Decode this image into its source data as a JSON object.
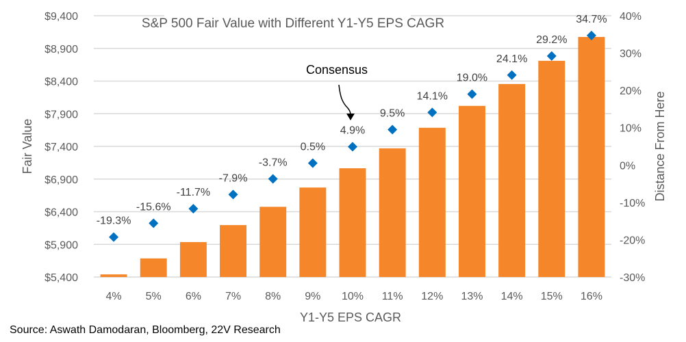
{
  "chart_data": {
    "type": "bar",
    "title": "S&P 500 Fair Value with Different Y1-Y5 EPS CAGR",
    "xlabel": "Y1-Y5 EPS CAGR",
    "ylabel": "Fair Value",
    "y2label": "Distance From Here",
    "categories": [
      "4%",
      "5%",
      "6%",
      "7%",
      "8%",
      "9%",
      "10%",
      "11%",
      "12%",
      "13%",
      "14%",
      "15%",
      "16%"
    ],
    "series": [
      {
        "name": "Fair Value",
        "type": "bar",
        "axis": "left",
        "color": "#F5872A",
        "values": [
          5440,
          5685,
          5935,
          6195,
          6475,
          6770,
          7065,
          7370,
          7685,
          8020,
          8355,
          8710,
          9075
        ]
      },
      {
        "name": "Distance From Here",
        "type": "scatter",
        "marker": "diamond",
        "axis": "right",
        "color": "#0070C0",
        "values": [
          -19.3,
          -15.6,
          -11.7,
          -7.9,
          -3.7,
          0.5,
          4.9,
          9.5,
          14.1,
          19.0,
          24.1,
          29.2,
          34.7
        ],
        "labels": [
          "-19.3%",
          "-15.6%",
          "-11.7%",
          "-7.9%",
          "-3.7%",
          "0.5%",
          "4.9%",
          "9.5%",
          "14.1%",
          "19.0%",
          "24.1%",
          "29.2%",
          "34.7%"
        ]
      }
    ],
    "ylim": [
      5400,
      9400
    ],
    "yticks": [
      5400,
      5900,
      6400,
      6900,
      7400,
      7900,
      8400,
      8900,
      9400
    ],
    "ytick_labels": [
      "$5,400",
      "$5,900",
      "$6,400",
      "$6,900",
      "$7,400",
      "$7,900",
      "$8,400",
      "$8,900",
      "$9,400"
    ],
    "y2lim": [
      -30,
      40
    ],
    "y2ticks": [
      -30,
      -20,
      -10,
      0,
      10,
      20,
      30,
      40
    ],
    "y2tick_labels": [
      "-30%",
      "-20%",
      "-10%",
      "0%",
      "10%",
      "20%",
      "30%",
      "40%"
    ],
    "grid": true,
    "legend": "none",
    "annotations": [
      {
        "text": "Consensus",
        "target_category": "10%",
        "arrow": true
      }
    ]
  },
  "source": "Source: Aswath Damodaran, Bloomberg, 22V Research"
}
